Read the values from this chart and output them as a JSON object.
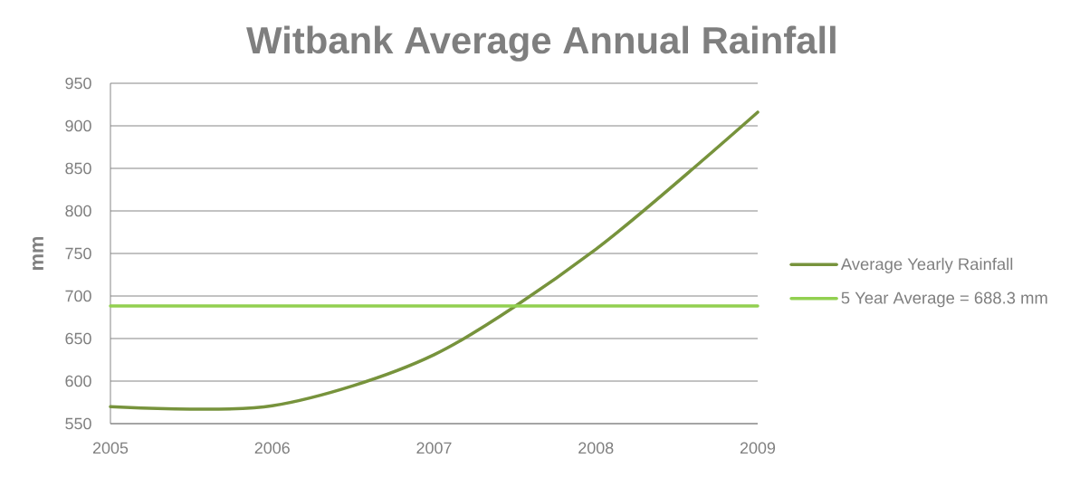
{
  "chart_data": {
    "type": "line",
    "title": "Witbank  Average Annual Rainfall",
    "ylabel": "mm",
    "x": [
      2005,
      2006,
      2007,
      2008,
      2009
    ],
    "xlim": [
      2005,
      2009
    ],
    "xticks": [
      2005,
      2006,
      2007,
      2008,
      2009
    ],
    "ylim": [
      550,
      950
    ],
    "yticks": [
      550,
      600,
      650,
      700,
      750,
      800,
      850,
      900,
      950
    ],
    "grid": "y",
    "legend": "right",
    "series": [
      {
        "name": "Average Yearly Rainfall",
        "color": "#77933c",
        "values": [
          570,
          571,
          631,
          755,
          916
        ]
      },
      {
        "name": "5 Year Average = 688.3 mm",
        "color": "#92d050",
        "values": [
          688.3,
          688.3,
          688.3,
          688.3,
          688.3
        ]
      }
    ]
  }
}
